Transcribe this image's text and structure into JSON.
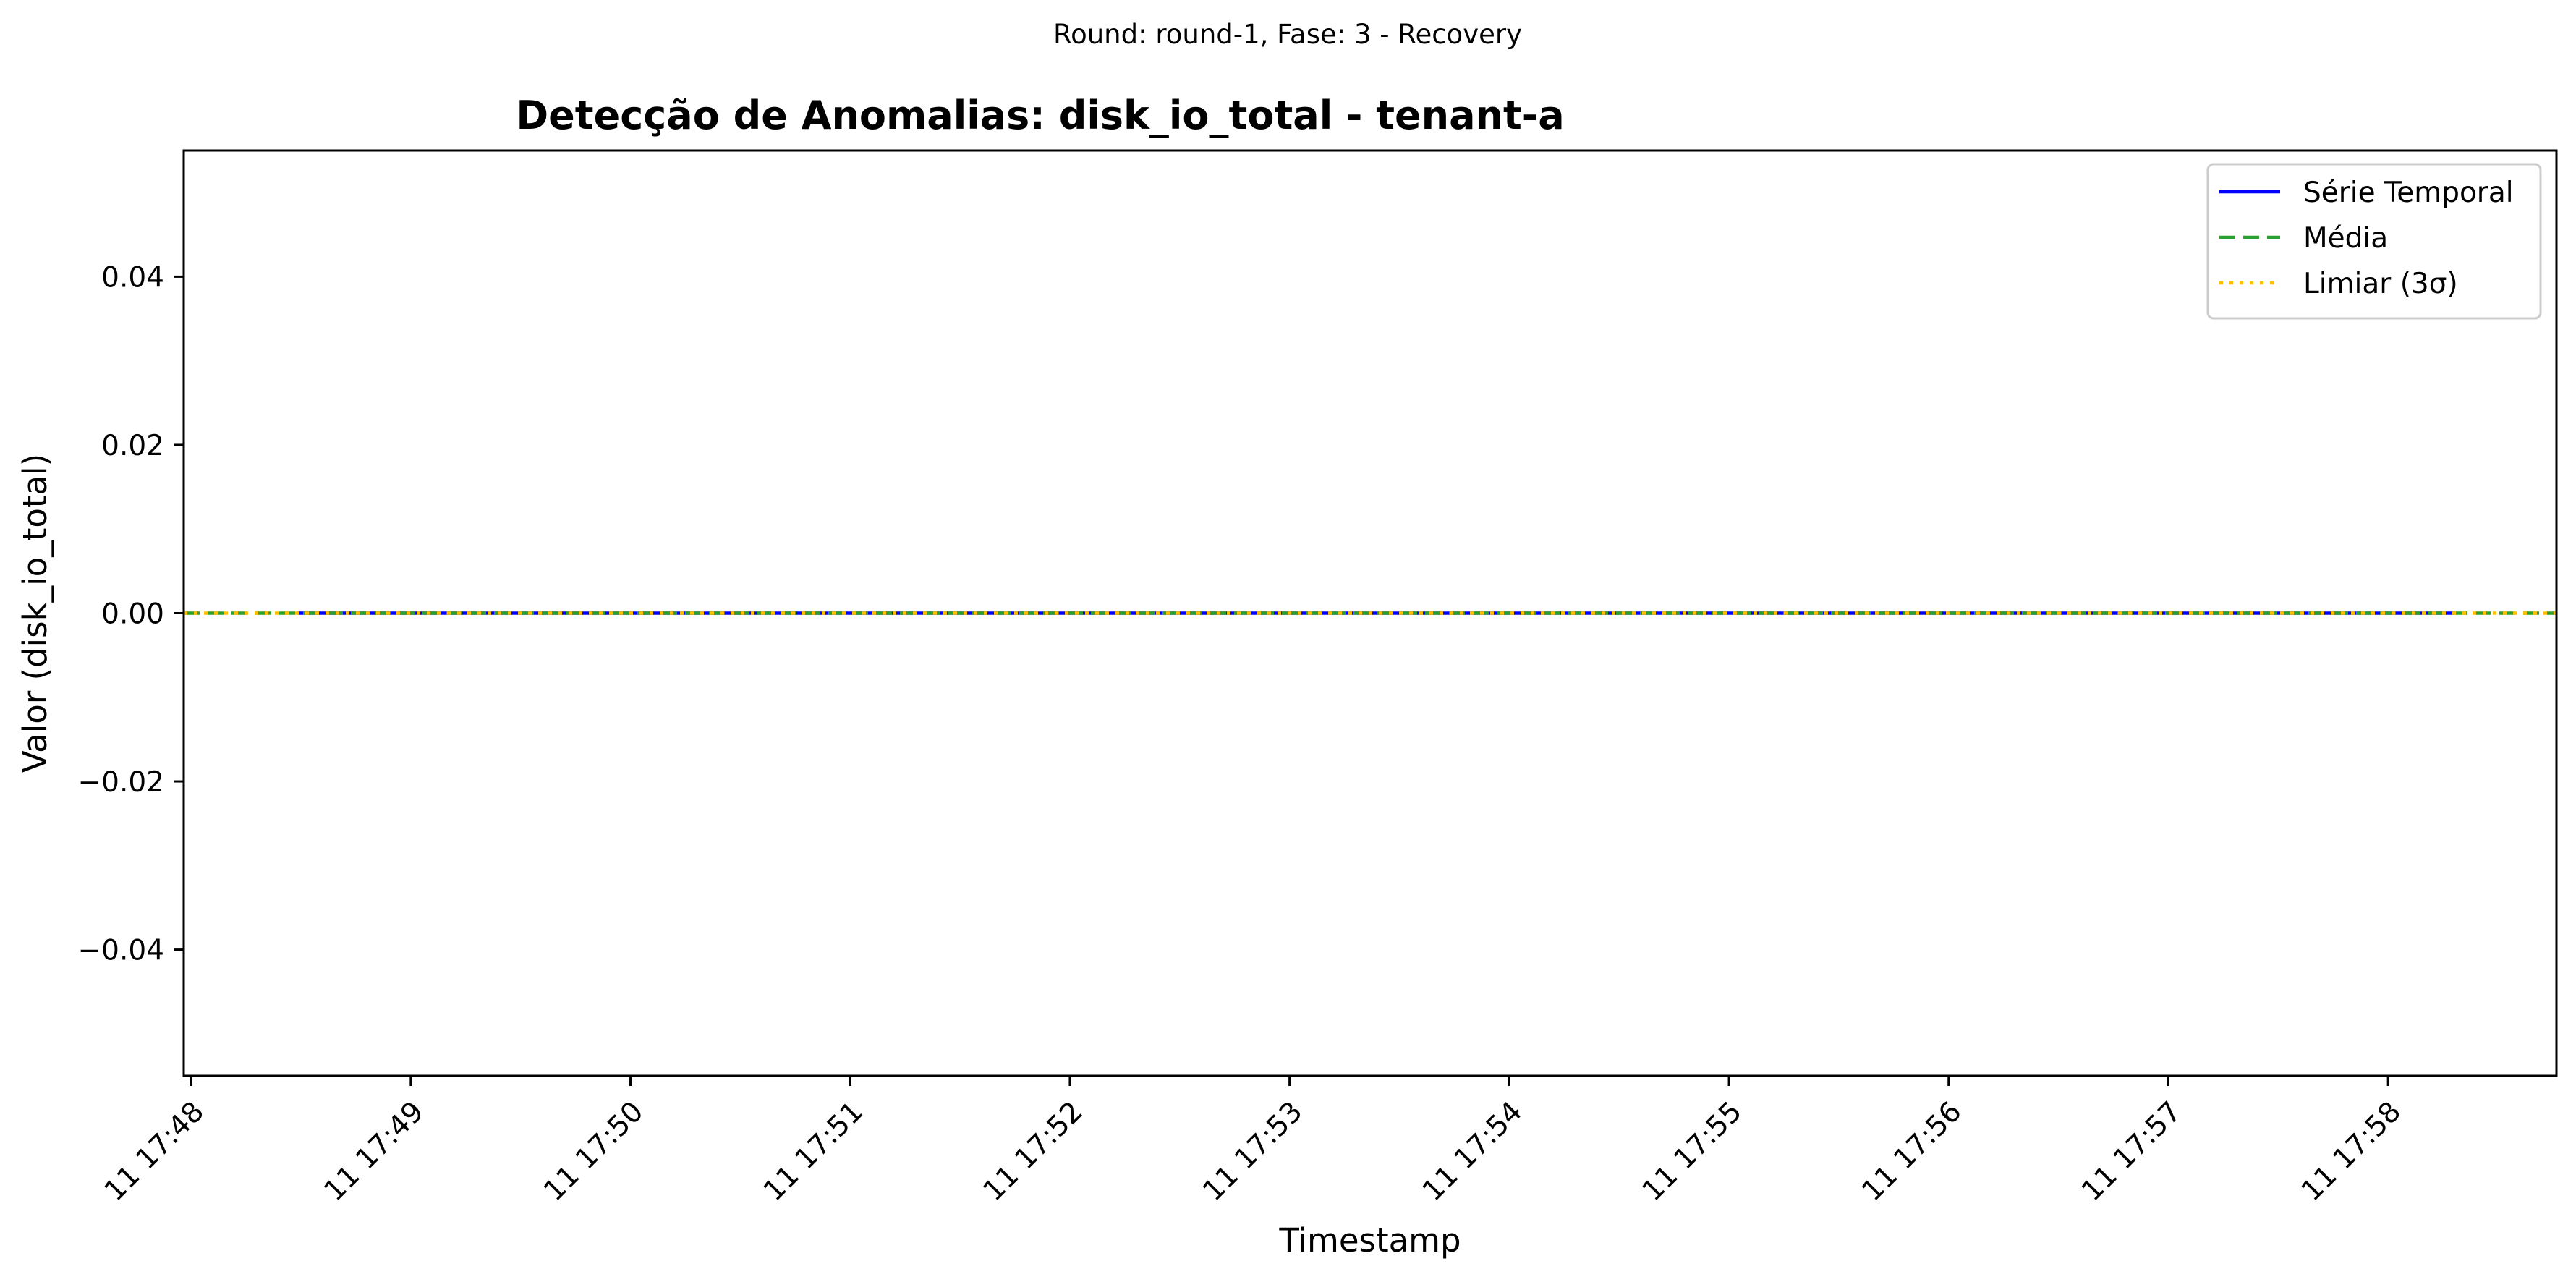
{
  "figure": {
    "suptitle": "Round: round-1, Fase: 3 - Recovery"
  },
  "chart_data": {
    "type": "line",
    "title": "Detecção de Anomalias: disk_io_total - tenant-a",
    "xlabel": "Timestamp",
    "ylabel": "Valor (disk_io_total)",
    "x_axis": {
      "kind": "time",
      "range": [
        "11 17:47:58",
        "11 17:58:46"
      ],
      "ticks": [
        "11 17:48",
        "11 17:49",
        "11 17:50",
        "11 17:51",
        "11 17:52",
        "11 17:53",
        "11 17:54",
        "11 17:55",
        "11 17:56",
        "11 17:57",
        "11 17:58"
      ]
    },
    "y_axis": {
      "range": [
        -0.055,
        0.055
      ],
      "ticks": [
        0.04,
        0.02,
        0.0,
        -0.02,
        -0.04
      ],
      "tick_labels": [
        "0.04",
        "0.02",
        "0.00",
        "−0.02",
        "−0.04"
      ]
    },
    "grid": false,
    "legend_position": "top-right",
    "series": [
      {
        "name": "Série Temporal",
        "style": "solid",
        "color": "#0000ff",
        "x": [
          "11 17:48:29",
          "11 17:58:18"
        ],
        "y": [
          0.0,
          0.0
        ]
      }
    ],
    "horizontal_lines": [
      {
        "name": "Média",
        "style": "dashed",
        "color": "#2ca02c",
        "y": 0.0
      },
      {
        "name": "Limiar (3σ)",
        "style": "dotted",
        "color": "#ffbf00",
        "y": 0.0
      }
    ]
  }
}
